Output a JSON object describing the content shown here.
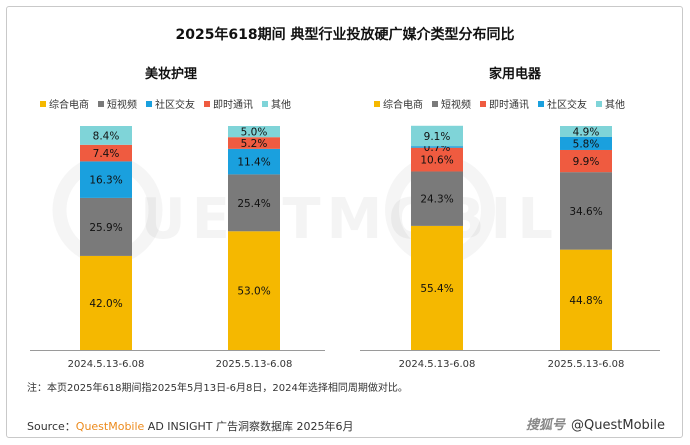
{
  "title": "2025年618期间 典型行业投放硬广媒介类型分布同比",
  "colors": {
    "综合电商": "#f5b800",
    "短视频": "#7a7a7a",
    "社区交友": "#1aa0de",
    "即时通讯": "#ef5b40",
    "其他": "#7fd4d8"
  },
  "chart_data": [
    {
      "type": "bar",
      "stacked": true,
      "title": "美妆护理",
      "legend": [
        "综合电商",
        "短视频",
        "社区交友",
        "即时通讯",
        "其他"
      ],
      "categories": [
        "2024.5.13-6.08",
        "2025.5.13-6.08"
      ],
      "series": [
        {
          "name": "综合电商",
          "values": [
            42.0,
            53.0
          ],
          "labels": [
            "42.0%",
            "53.0%"
          ]
        },
        {
          "name": "短视频",
          "values": [
            25.9,
            25.4
          ],
          "labels": [
            "25.9%",
            "25.4%"
          ]
        },
        {
          "name": "社区交友",
          "values": [
            16.3,
            11.4
          ],
          "labels": [
            "16.3%",
            "11.4%"
          ]
        },
        {
          "name": "即时通讯",
          "values": [
            7.4,
            5.2
          ],
          "labels": [
            "7.4%",
            "5.2%"
          ]
        },
        {
          "name": "其他",
          "values": [
            8.4,
            5.0
          ],
          "labels": [
            "8.4%",
            "5.0%"
          ]
        }
      ],
      "ylim": [
        0,
        100
      ]
    },
    {
      "type": "bar",
      "stacked": true,
      "title": "家用电器",
      "legend": [
        "综合电商",
        "短视频",
        "即时通讯",
        "社区交友",
        "其他"
      ],
      "categories": [
        "2024.5.13-6.08",
        "2025.5.13-6.08"
      ],
      "series": [
        {
          "name": "综合电商",
          "values": [
            55.4,
            44.8
          ],
          "labels": [
            "55.4%",
            "44.8%"
          ]
        },
        {
          "name": "短视频",
          "values": [
            24.3,
            34.6
          ],
          "labels": [
            "24.3%",
            "34.6%"
          ]
        },
        {
          "name": "即时通讯",
          "values": [
            10.6,
            9.9
          ],
          "labels": [
            "10.6%",
            "9.9%"
          ]
        },
        {
          "name": "社区交友",
          "values": [
            0.7,
            5.8
          ],
          "labels": [
            "0.7%",
            "5.8%"
          ]
        },
        {
          "name": "其他",
          "values": [
            9.1,
            4.9
          ],
          "labels": [
            "9.1%",
            "4.9%"
          ]
        }
      ],
      "ylim": [
        0,
        100
      ]
    }
  ],
  "footnote": "注：本页2025年618期间指2025年5月13日-6月8日，2024年选择相同周期做对比。",
  "source": {
    "prefix": "Source：",
    "brand": "QuestMobile",
    "rest": " AD INSIGHT 广告洞察数据库 2025年6月"
  },
  "credit": {
    "watermark": "搜狐号",
    "handle": "@QuestMobile"
  },
  "watermark_text": "QUESTMOBILE"
}
